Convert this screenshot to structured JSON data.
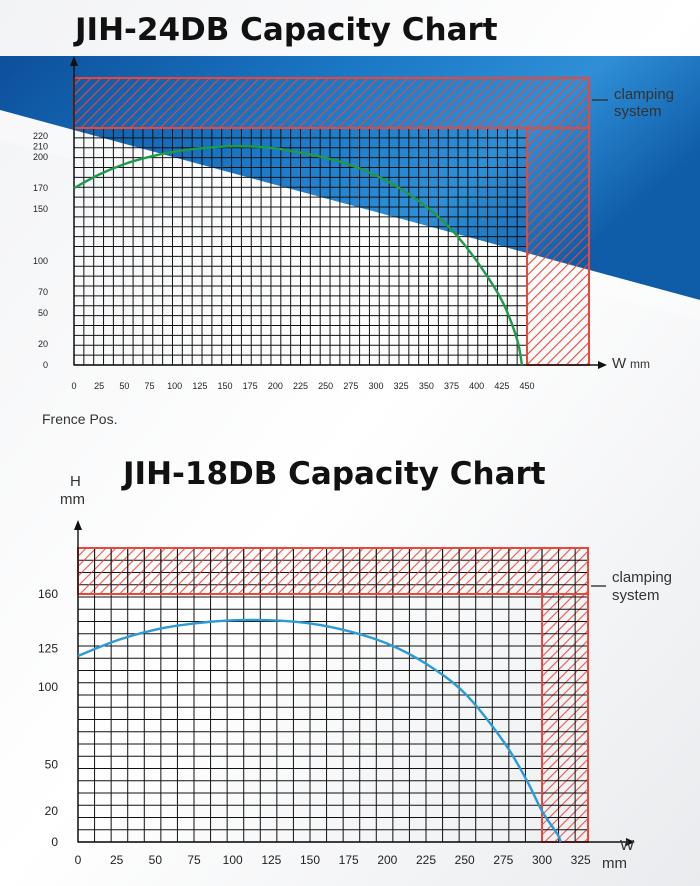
{
  "chart_data": [
    {
      "type": "line",
      "title": "JIH-24DB Capacity Chart",
      "xlabel": "W mm",
      "ylabel": "",
      "xlim": [
        0,
        450
      ],
      "ylim": [
        0,
        220
      ],
      "x_ticks": [
        0,
        25,
        50,
        75,
        100,
        125,
        150,
        175,
        200,
        225,
        250,
        275,
        300,
        325,
        350,
        375,
        400,
        425,
        450
      ],
      "y_ticks": [
        0,
        20,
        50,
        70,
        100,
        150,
        170,
        200,
        210,
        220
      ],
      "series": [
        {
          "name": "",
          "color": "#1f9a4a",
          "x": [
            0,
            25,
            50,
            75,
            100,
            125,
            150,
            175,
            200,
            225,
            250,
            275,
            300,
            325,
            350,
            375,
            400,
            425,
            440,
            445
          ],
          "y": [
            170,
            183,
            193,
            200,
            205,
            208,
            210,
            210,
            208,
            204,
            199,
            192,
            182,
            169,
            152,
            130,
            100,
            62,
            25,
            0
          ]
        }
      ],
      "regions": [
        {
          "label": "clamping system",
          "color": "#e8473a"
        }
      ],
      "annotations": [
        "Frence Pos."
      ],
      "grid": true,
      "legend": "none"
    },
    {
      "type": "line",
      "title": "JIH-18DB Capacity Chart",
      "xlabel": "W\nmm",
      "ylabel": "H\nmm",
      "xlim": [
        0,
        325
      ],
      "ylim": [
        0,
        160
      ],
      "x_ticks": [
        0,
        25,
        50,
        75,
        100,
        125,
        150,
        175,
        200,
        225,
        250,
        275,
        300,
        325
      ],
      "y_ticks": [
        0,
        20,
        50,
        100,
        125,
        160
      ],
      "series": [
        {
          "name": "",
          "color": "#2a9bd6",
          "x": [
            0,
            25,
            50,
            75,
            100,
            125,
            150,
            175,
            200,
            225,
            250,
            275,
            290,
            300,
            310,
            312
          ],
          "y": [
            120,
            130,
            137,
            141,
            143,
            143,
            141,
            136,
            128,
            115,
            96,
            65,
            40,
            20,
            5,
            0
          ]
        }
      ],
      "regions": [
        {
          "label": "clamping system",
          "color": "#e8473a"
        }
      ],
      "grid": true,
      "legend": "none"
    }
  ],
  "labels": {
    "c1_axis_w": "W",
    "c1_axis_mm": "mm",
    "c1_clamp_1": "clamping",
    "c1_clamp_2": "system",
    "c1_fence": "Frence Pos.",
    "c2_axis_h": "H",
    "c2_axis_hmm": "mm",
    "c2_axis_w": "W",
    "c2_axis_wmm": "mm",
    "c2_clamp_1": "clamping",
    "c2_clamp_2": "system"
  },
  "colors": {
    "blue_band": "#1568b6",
    "blue_band_light": "#5aa7e0",
    "hatch": "#e8473a",
    "grid": "#111111"
  }
}
